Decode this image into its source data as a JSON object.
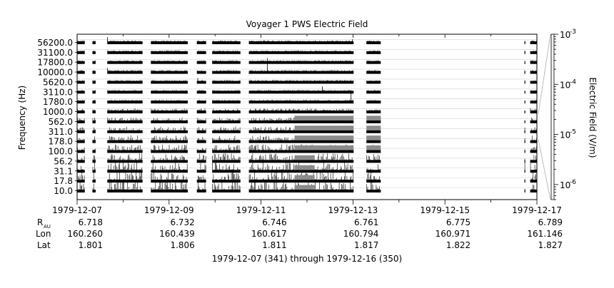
{
  "chart_data": {
    "type": "heatmap",
    "title": "Voyager 1 PWS Electric Field",
    "ylabel": "Frequency (Hz)",
    "colorbar": {
      "label": "Electric Field (V/m)",
      "scale": "log",
      "range": [
        5e-07,
        0.001
      ],
      "tick_values": [
        1e-06,
        1e-05,
        0.0001,
        0.001
      ],
      "tick_mantissa": [
        "10",
        "10",
        "10",
        "10"
      ],
      "tick_exponents": [
        "-6",
        "-5",
        "-4",
        "-3"
      ]
    },
    "y_channels": [
      "10.0",
      "17.8",
      "31.1",
      "56.2",
      "100.0",
      "178.0",
      "311.0",
      "562.0",
      "1000.0",
      "1780.0",
      "3110.0",
      "5620.0",
      "10000.0",
      "17800.0",
      "31100.0",
      "56200.0"
    ],
    "x_start": "1979-12-07",
    "x_end": "1979-12-17",
    "x_ticks": [
      "1979-12-07",
      "1979-12-09",
      "1979-12-11",
      "1979-12-13",
      "1979-12-15",
      "1979-12-17"
    ],
    "ephemeris": {
      "row_labels": {
        "r_main": "R",
        "r_sub": "AU",
        "lon": "Lon",
        "lat": "Lat"
      },
      "columns": [
        {
          "date": "1979-12-07",
          "r": "6.718",
          "lon": "160.260",
          "lat": "1.801"
        },
        {
          "date": "1979-12-09",
          "r": "6.732",
          "lon": "160.439",
          "lat": "1.806"
        },
        {
          "date": "1979-12-11",
          "r": "6.746",
          "lon": "160.617",
          "lat": "1.811"
        },
        {
          "date": "1979-12-13",
          "r": "6.761",
          "lon": "160.794",
          "lat": "1.817"
        },
        {
          "date": "1979-12-15",
          "r": "6.775",
          "lon": "160.971",
          "lat": "1.822"
        },
        {
          "date": "1979-12-17",
          "r": "6.789",
          "lon": "161.146",
          "lat": "1.827"
        }
      ]
    },
    "data_segments": [
      {
        "start": "1979-12-07 00:00",
        "end": "1979-12-07 04:00"
      },
      {
        "start": "1979-12-07 08:00",
        "end": "1979-12-07 09:40"
      },
      {
        "start": "1979-12-07 15:45",
        "end": "1979-12-08 10:10"
      },
      {
        "start": "1979-12-08 14:30",
        "end": "1979-12-09 09:45"
      },
      {
        "start": "1979-12-09 14:30",
        "end": "1979-12-09 19:20"
      },
      {
        "start": "1979-12-09 22:30",
        "end": "1979-12-10 13:15"
      },
      {
        "start": "1979-12-10 17:40",
        "end": "1979-12-13 00:20"
      },
      {
        "start": "1979-12-13 07:00",
        "end": "1979-12-13 14:30"
      },
      {
        "start": "1979-12-16 17:30",
        "end": "1979-12-16 17:50"
      },
      {
        "start": "1979-12-16 20:30",
        "end": "1979-12-17 00:00"
      }
    ],
    "gray_blocks": [
      {
        "start": "1979-12-11 17:30",
        "end": "1979-12-13 00:20",
        "channels": [
          "100.0",
          "178.0",
          "311.0",
          "562.0"
        ]
      },
      {
        "start": "1979-12-11 17:30",
        "end": "1979-12-12 04:00",
        "channels": [
          "10.0",
          "17.8",
          "31.1",
          "56.2"
        ]
      },
      {
        "start": "1979-12-13 07:00",
        "end": "1979-12-13 14:30",
        "channels": [
          "100.0",
          "178.0",
          "311.0",
          "562.0"
        ]
      }
    ],
    "footer_text": "1979-12-07 (341) through 1979-12-16 (350)"
  }
}
